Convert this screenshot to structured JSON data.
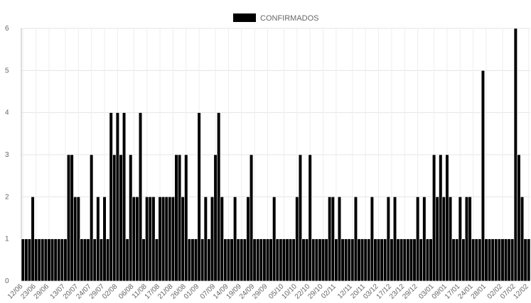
{
  "chart_data": {
    "type": "bar",
    "legend": {
      "label": "CONFIRMADOS",
      "position": "top",
      "color": "#000000"
    },
    "bar_color": "#000000",
    "bar_border_color": "#ffffff",
    "grid": true,
    "ylim": [
      0,
      6
    ],
    "y_ticks": [
      0,
      1,
      2,
      3,
      4,
      5,
      6
    ],
    "x_tick_labels": [
      "12/06",
      "23/06",
      "29/06",
      "13/07",
      "20/07",
      "24/07",
      "29/07",
      "02/08",
      "06/08",
      "11/08",
      "17/08",
      "21/08",
      "26/08",
      "01/09",
      "07/09",
      "14/09",
      "19/09",
      "24/09",
      "29/09",
      "05/10",
      "10/10",
      "22/10",
      "29/10",
      "02/11",
      "12/11",
      "20/11",
      "03/12",
      "17/12",
      "23/12",
      "29/12",
      "03/01",
      "09/01",
      "17/01",
      "24/01",
      "28/01",
      "02/02",
      "07/02",
      "12/02"
    ],
    "values": [
      1,
      1,
      1,
      2,
      1,
      1,
      1,
      1,
      1,
      1,
      1,
      1,
      1,
      1,
      3,
      3,
      2,
      2,
      1,
      1,
      1,
      3,
      1,
      2,
      1,
      2,
      1,
      4,
      3,
      4,
      3,
      4,
      1,
      3,
      2,
      2,
      4,
      1,
      2,
      2,
      2,
      1,
      2,
      2,
      2,
      2,
      2,
      3,
      3,
      2,
      3,
      1,
      1,
      1,
      4,
      1,
      2,
      1,
      2,
      3,
      4,
      2,
      1,
      1,
      1,
      2,
      1,
      1,
      1,
      2,
      3,
      1,
      1,
      1,
      1,
      1,
      1,
      2,
      1,
      1,
      1,
      1,
      1,
      1,
      2,
      3,
      1,
      1,
      3,
      1,
      1,
      1,
      1,
      1,
      2,
      2,
      1,
      2,
      1,
      1,
      1,
      1,
      2,
      1,
      1,
      1,
      1,
      2,
      1,
      1,
      1,
      1,
      2,
      1,
      2,
      1,
      1,
      1,
      1,
      1,
      1,
      2,
      1,
      2,
      1,
      1,
      3,
      2,
      3,
      2,
      3,
      2,
      1,
      1,
      2,
      1,
      2,
      2,
      1,
      1,
      1,
      5,
      1,
      1,
      1,
      1,
      1,
      1,
      1,
      1,
      1,
      6,
      3,
      2,
      1,
      1
    ]
  }
}
